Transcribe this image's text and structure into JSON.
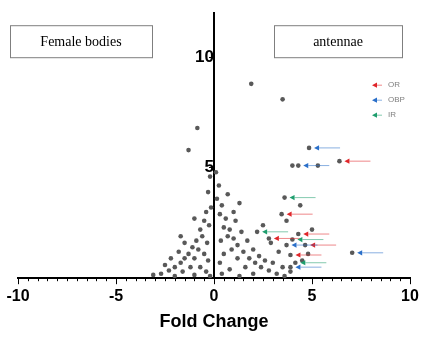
{
  "chart_data": {
    "type": "scatter",
    "x_label": "Fold Change",
    "annotations": [
      "Female bodies",
      "antennae"
    ],
    "xlim": [
      -10,
      10
    ],
    "xticks": [
      -10,
      -5,
      0,
      5,
      10
    ],
    "ylim": [
      0,
      12
    ],
    "yticks": [
      5,
      10
    ],
    "grid": false,
    "legend": "top-right",
    "series": [
      {
        "color": "#595959",
        "marker": "circle",
        "x": [
          -0.2,
          -0.3,
          -0.15,
          -0.4,
          -0.5,
          -0.25,
          -0.7,
          -0.6,
          -0.9,
          -0.35,
          -1.1,
          -0.8,
          -1.3,
          -0.5,
          -1.5,
          -1.0,
          -1.7,
          -0.3,
          -2.0,
          -1.2,
          -2.3,
          -0.7,
          -2.7,
          -1.6,
          -3.1,
          -0.4,
          -2.0,
          -1.0,
          -0.2,
          -1.8,
          -2.2,
          -1.5,
          -0.85,
          -1.3,
          -1.0,
          -1.7,
          -2.5,
          0.1,
          0.25,
          0.15,
          0.4,
          0.3,
          0.6,
          0.5,
          0.8,
          0.7,
          1.0,
          0.35,
          1.2,
          0.9,
          1.5,
          0.5,
          1.8,
          1.2,
          2.1,
          0.3,
          2.4,
          1.6,
          2.8,
          0.8,
          3.2,
          2.0,
          0.4,
          1.3,
          3.6,
          1.1,
          1.4,
          1.7,
          2.0,
          2.3,
          2.6,
          1.0,
          1.3,
          0.7,
          2.9,
          3.3,
          3.0,
          3.5,
          1.9,
          3.5,
          4.0,
          5.3,
          3.7,
          4.4,
          2.5,
          3.9,
          4.5,
          5.0,
          4.8
        ],
        "values": [
          4.6,
          3.9,
          3.2,
          3.0,
          2.6,
          2.4,
          2.2,
          1.9,
          1.7,
          1.6,
          1.4,
          1.3,
          1.1,
          1.1,
          0.9,
          0.9,
          0.7,
          0.8,
          0.5,
          0.5,
          0.35,
          0.5,
          0.2,
          0.3,
          0.15,
          0.3,
          0.1,
          0.15,
          0.1,
          1.2,
          0.9,
          1.6,
          6.8,
          5.8,
          2.7,
          1.9,
          0.6,
          4.8,
          4.2,
          3.6,
          3.3,
          2.9,
          2.7,
          2.3,
          2.2,
          1.9,
          1.8,
          1.7,
          1.5,
          1.3,
          1.2,
          1.1,
          0.9,
          0.9,
          0.7,
          0.7,
          0.5,
          0.5,
          0.35,
          0.4,
          0.2,
          0.2,
          0.2,
          0.1,
          0.1,
          2.6,
          2.1,
          1.7,
          1.3,
          1.0,
          0.8,
          3.0,
          3.4,
          3.8,
          1.6,
          1.2,
          0.7,
          0.5,
          8.8,
          8.1,
          5.1,
          5.1,
          2.6,
          3.3,
          2.4,
          0.3,
          0.8,
          2.2,
          1.1
        ]
      },
      {
        "name": "OR",
        "color": "#e0262a",
        "marker": "arrow",
        "x": [
          6.4,
          3.45,
          2.8,
          4.3,
          4.65,
          3.9
        ],
        "values": [
          5.3,
          2.9,
          1.8,
          2.0,
          1.5,
          1.05
        ]
      },
      {
        "name": "OBP",
        "color": "#2a6fc9",
        "marker": "arrow",
        "x": [
          4.85,
          4.3,
          3.7,
          7.05,
          3.9
        ],
        "values": [
          5.9,
          5.1,
          1.5,
          1.15,
          0.5
        ]
      },
      {
        "name": "IR",
        "color": "#1f9e6e",
        "marker": "arrow",
        "x": [
          3.6,
          2.2,
          4.0,
          4.15
        ],
        "values": [
          3.65,
          2.1,
          1.75,
          0.7
        ]
      }
    ]
  }
}
